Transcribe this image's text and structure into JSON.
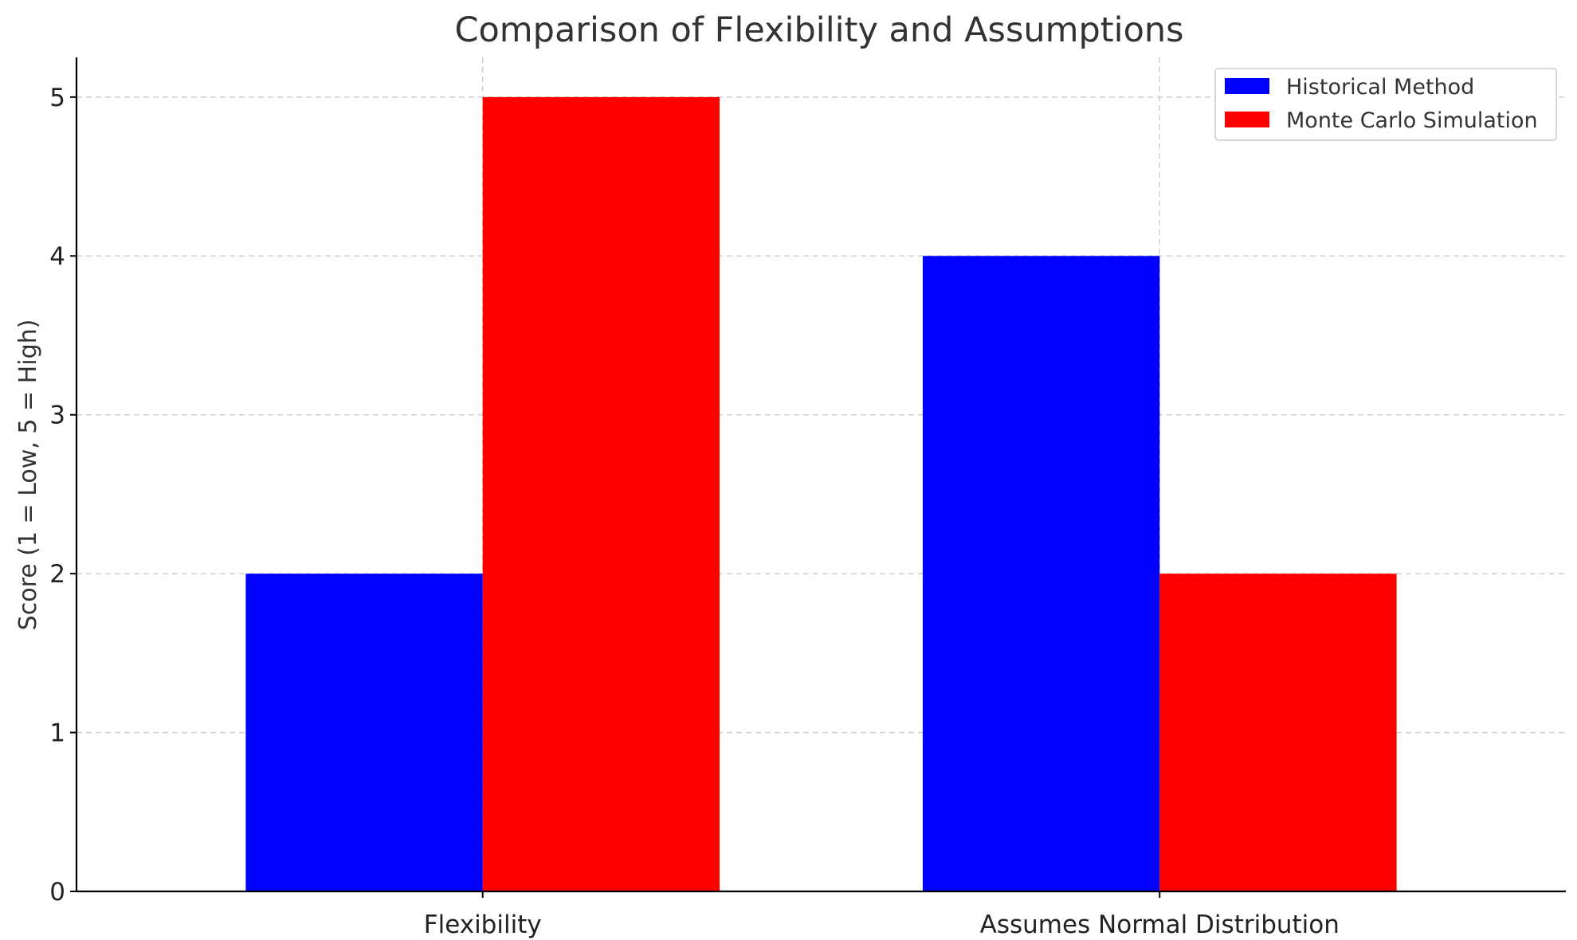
{
  "chart_data": {
    "type": "bar",
    "title": "Comparison of Flexibility and Assumptions",
    "xlabel": "",
    "ylabel": "Score (1 = Low, 5 = High)",
    "categories": [
      "Flexibility",
      "Assumes Normal Distribution"
    ],
    "series": [
      {
        "name": "Historical Method",
        "values": [
          2,
          4
        ],
        "color": "#0000ff"
      },
      {
        "name": "Monte Carlo Simulation",
        "values": [
          5,
          2
        ],
        "color": "#ff0000"
      }
    ],
    "yticks": [
      0,
      1,
      2,
      3,
      4,
      5
    ],
    "ylim": [
      0,
      5.25
    ],
    "grid": true,
    "legend_position": "top-right"
  }
}
